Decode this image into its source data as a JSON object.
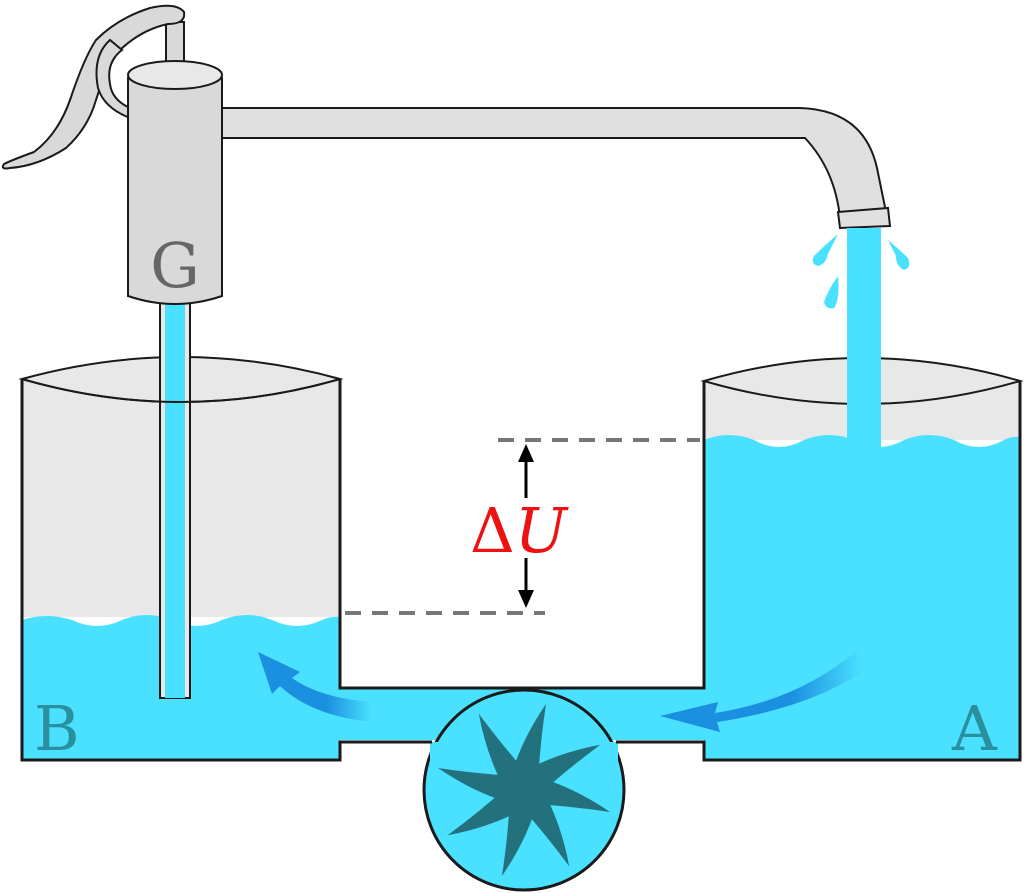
{
  "labels": {
    "pump": "G",
    "tank_left": "B",
    "tank_right": "A",
    "delta_symbol": "Δ",
    "delta_var": "U"
  },
  "colors": {
    "water": "#4ae0ff",
    "water_dark": "#1b8fe0",
    "metal": "#d9d9d9",
    "metal_light": "#e8e8e8",
    "outline": "#1a1a1a",
    "turbine": "#24717e",
    "dashed_line": "#777777",
    "delta_text": "#ee1111",
    "tank_label": "#2a8f9f",
    "pump_label": "#666666"
  },
  "icons": {
    "pump": "hand-pump-icon",
    "turbine": "turbine-wheel-icon",
    "flow": "flow-arrow-icon",
    "drops": "water-drop-icon"
  }
}
